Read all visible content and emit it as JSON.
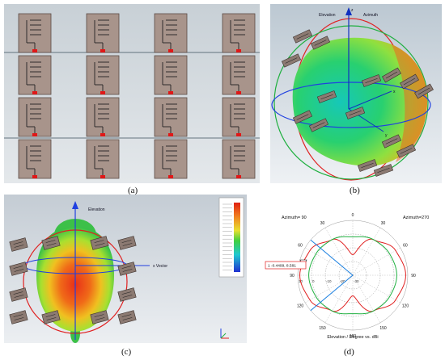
{
  "captions": {
    "a": "(a)",
    "b": "(b)",
    "c": "(c)",
    "d": "(d)"
  },
  "panel_b": {
    "axis_labels": {
      "z": "z",
      "elevation": "Elevation",
      "azimuth": "Azimuth",
      "x": "x",
      "y": "y"
    }
  },
  "panel_c": {
    "axis_labels": {
      "elevation": "Elevation",
      "x_vector": "x Vector"
    }
  },
  "panel_d": {
    "left_label": "Azimuth= 90",
    "right_label": "Azimuth=270",
    "xlabel": "Elevation / Degree vs. dBi",
    "annotation": "1 -0.4499, 8.581",
    "tick_labels": [
      "0",
      "30",
      "60",
      "90",
      "120",
      "150",
      "180",
      "150",
      "120",
      "90",
      "60",
      "30"
    ],
    "radial_labels": [
      "10",
      "0",
      "-10",
      "-20",
      "-30"
    ]
  },
  "colors": {
    "accent_red": "#e02020",
    "accent_blue": "#2040e0",
    "accent_green": "#20b040",
    "sim_bg": "#d7dde2",
    "patch": "#a8948b"
  },
  "chart_data": {
    "type": "polar",
    "title": "",
    "xlabel": "Elevation / Degree vs. dBi",
    "rlim": [
      -30,
      10
    ],
    "annotation": {
      "marker": "1",
      "value": "-0.4499, 8.581"
    },
    "series": [
      {
        "color": "#e02020",
        "angles_deg": [
          0,
          30,
          60,
          90,
          120,
          150,
          180,
          210,
          240,
          270,
          300,
          330
        ],
        "gain_dbi": [
          -15,
          0,
          6,
          8.5,
          6,
          0,
          -15,
          0,
          6,
          8.5,
          6,
          0
        ]
      },
      {
        "color": "#20b040",
        "angles_deg": [
          0,
          30,
          60,
          90,
          120,
          150,
          180,
          210,
          240,
          270,
          300,
          330
        ],
        "gain_dbi": [
          -2,
          0,
          1,
          2,
          1,
          0,
          -2,
          0,
          1,
          2,
          1,
          0
        ]
      }
    ]
  }
}
